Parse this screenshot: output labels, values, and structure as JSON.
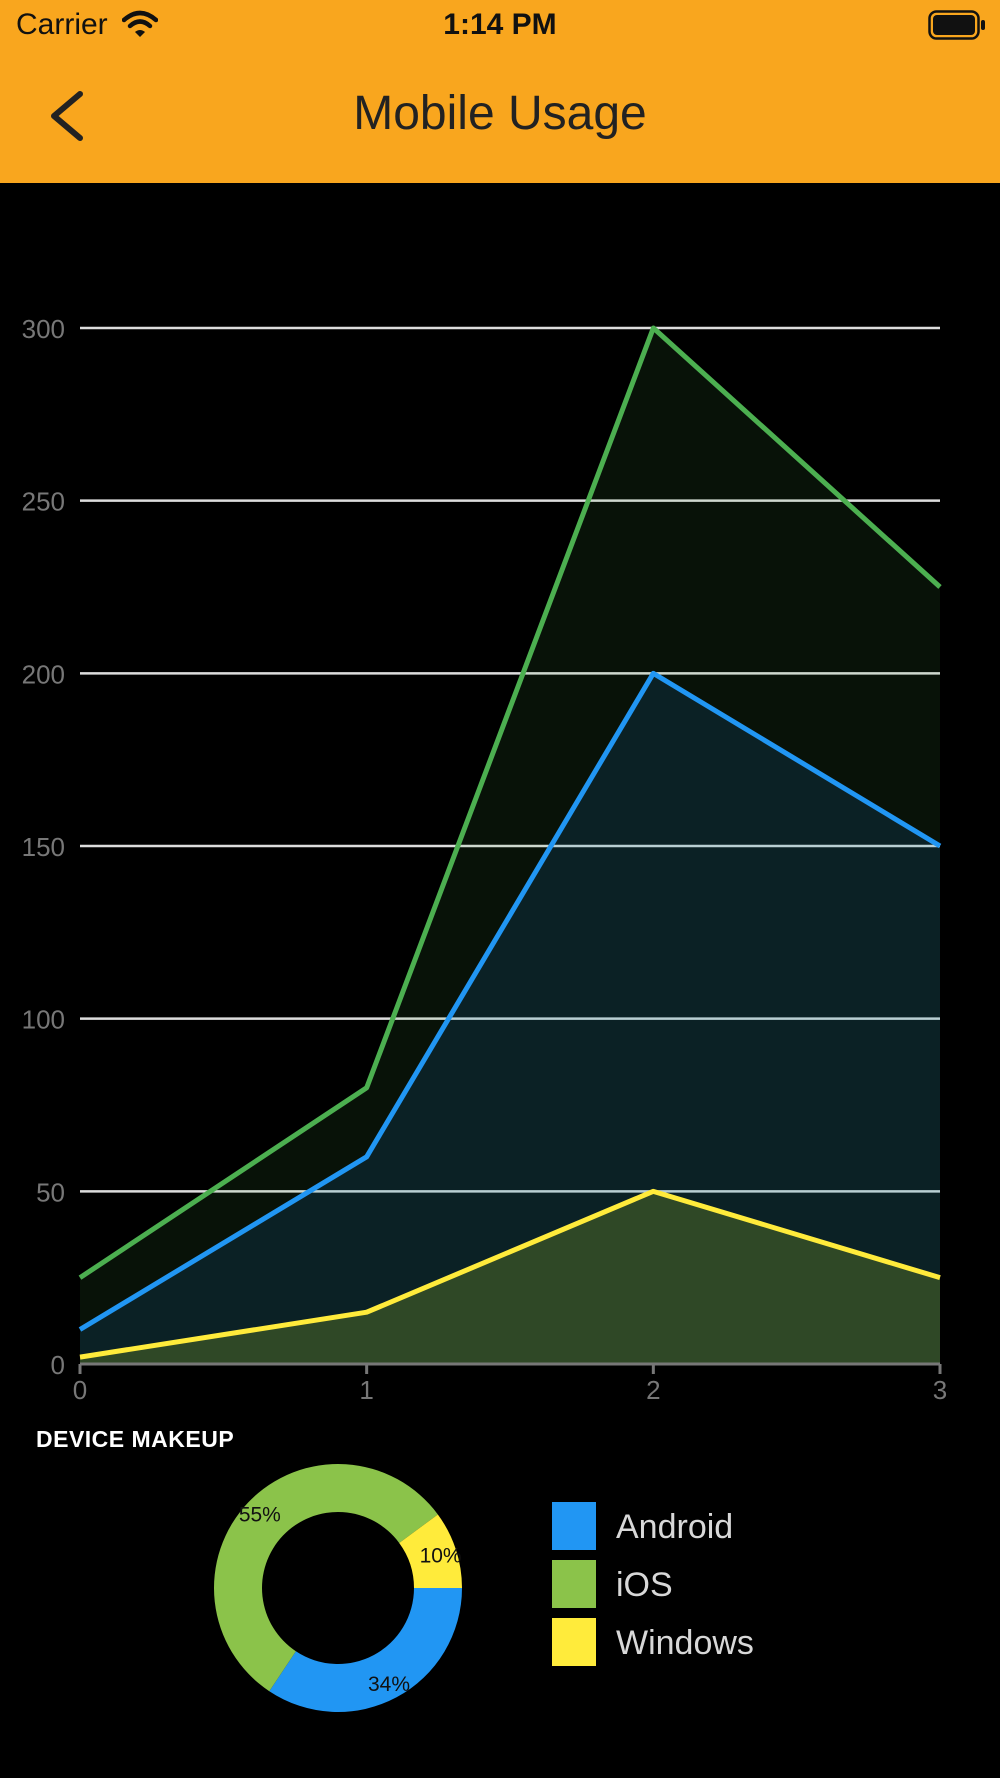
{
  "status_bar": {
    "carrier": "Carrier",
    "time": "1:14 PM"
  },
  "header": {
    "title": "Mobile Usage",
    "back_icon": "chevron-left-icon"
  },
  "colors": {
    "header_bg": "#F9A61E",
    "android": "#2196F3",
    "ios": "#4CAF50",
    "ios_slice": "#8BC34A",
    "windows": "#FFEB3B",
    "gridline": "#dddddd"
  },
  "chart_data": [
    {
      "type": "area",
      "x": [
        0,
        1,
        2,
        3
      ],
      "xticks": [
        "0",
        "1",
        "2",
        "3"
      ],
      "yticks": [
        "0",
        "50",
        "100",
        "150",
        "200",
        "250",
        "300"
      ],
      "ylim": [
        0,
        300
      ],
      "xlim": [
        0,
        3
      ],
      "grid": true,
      "series": [
        {
          "key": "ios",
          "values": [
            25,
            80,
            300,
            225
          ]
        },
        {
          "key": "android",
          "values": [
            10,
            60,
            200,
            150
          ]
        },
        {
          "key": "windows",
          "values": [
            2,
            15,
            50,
            25
          ]
        }
      ]
    },
    {
      "type": "pie",
      "title": "DEVICE MAKEUP",
      "slices": [
        {
          "name": "Android",
          "value": 34,
          "label": "34%"
        },
        {
          "name": "iOS",
          "value": 55,
          "label": "55%"
        },
        {
          "name": "Windows",
          "value": 10,
          "label": "10%"
        }
      ]
    }
  ],
  "legend": [
    {
      "label": "Android",
      "color": "#2196F3"
    },
    {
      "label": "iOS",
      "color": "#8BC34A"
    },
    {
      "label": "Windows",
      "color": "#FFEB3B"
    }
  ]
}
